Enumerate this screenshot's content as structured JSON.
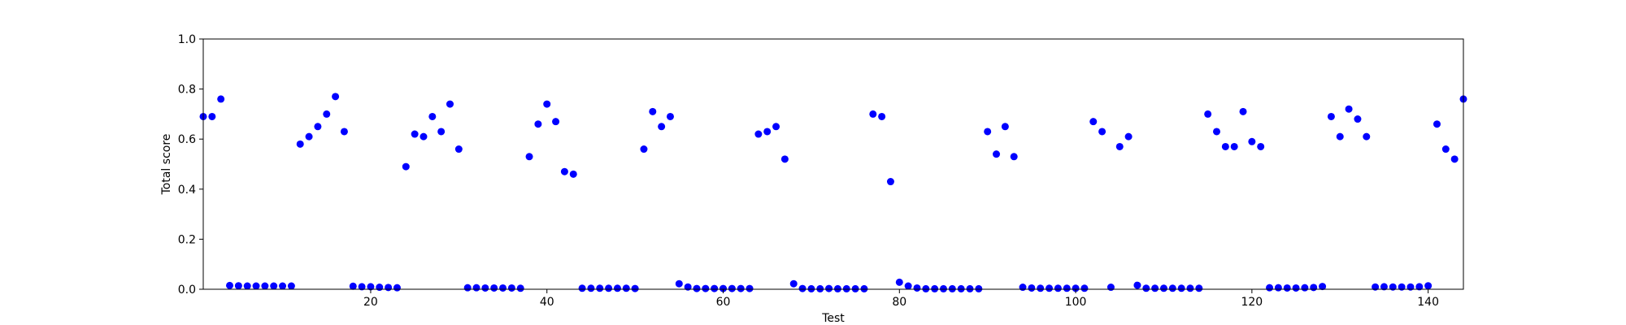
{
  "chart_data": {
    "type": "scatter",
    "title": "",
    "xlabel": "Test",
    "ylabel": "Total score",
    "xlim": [
      1,
      144
    ],
    "ylim": [
      0.0,
      1.0
    ],
    "xticks": [
      20,
      40,
      60,
      80,
      100,
      120,
      140
    ],
    "yticks": [
      0.0,
      0.2,
      0.4,
      0.6,
      0.8,
      1.0
    ],
    "xtick_labels": [
      "20",
      "40",
      "60",
      "80",
      "100",
      "120",
      "140"
    ],
    "ytick_labels": [
      "0.0",
      "0.2",
      "0.4",
      "0.6",
      "0.8",
      "1.0"
    ],
    "grid": false,
    "marker_color": "#0000ff",
    "series": [
      {
        "x": [
          1,
          2,
          3,
          4,
          5,
          6,
          7,
          8,
          9,
          10,
          11,
          12,
          13,
          14,
          15,
          16,
          17,
          18,
          19,
          20,
          21,
          22,
          23,
          24,
          25,
          26,
          27,
          28,
          29,
          30,
          31,
          32,
          33,
          34,
          35,
          36,
          37,
          38,
          39,
          40,
          41,
          42,
          43,
          44,
          45,
          46,
          47,
          48,
          49,
          50,
          51,
          52,
          53,
          54,
          55,
          56,
          57,
          58,
          59,
          60,
          61,
          62,
          63,
          64,
          65,
          66,
          67,
          68,
          69,
          70,
          71,
          72,
          73,
          74,
          75,
          76,
          77,
          78,
          79,
          80,
          81,
          82,
          83,
          84,
          85,
          86,
          87,
          88,
          89,
          90,
          91,
          92,
          93,
          94,
          95,
          96,
          97,
          98,
          99,
          100,
          101,
          102,
          103,
          104,
          105,
          106,
          107,
          108,
          109,
          110,
          111,
          112,
          113,
          114,
          115,
          116,
          117,
          118,
          119,
          120,
          121,
          122,
          123,
          124,
          125,
          126,
          127,
          128,
          129,
          130,
          131,
          132,
          133,
          134,
          135,
          136,
          137,
          138,
          139,
          140,
          141,
          142,
          143,
          144
        ],
        "y": [
          0.69,
          0.69,
          0.76,
          0.015,
          0.014,
          0.013,
          0.013,
          0.013,
          0.013,
          0.013,
          0.013,
          0.58,
          0.61,
          0.65,
          0.7,
          0.77,
          0.63,
          0.012,
          0.01,
          0.01,
          0.008,
          0.007,
          0.006,
          0.49,
          0.62,
          0.61,
          0.69,
          0.63,
          0.74,
          0.56,
          0.006,
          0.006,
          0.005,
          0.005,
          0.005,
          0.005,
          0.004,
          0.53,
          0.66,
          0.74,
          0.67,
          0.47,
          0.46,
          0.004,
          0.004,
          0.004,
          0.004,
          0.004,
          0.004,
          0.003,
          0.56,
          0.71,
          0.65,
          0.69,
          0.022,
          0.009,
          0.003,
          0.003,
          0.003,
          0.003,
          0.003,
          0.003,
          0.003,
          0.62,
          0.63,
          0.65,
          0.52,
          0.022,
          0.003,
          0.002,
          0.002,
          0.003,
          0.002,
          0.002,
          0.002,
          0.002,
          0.7,
          0.69,
          0.43,
          0.028,
          0.013,
          0.005,
          0.002,
          0.002,
          0.002,
          0.002,
          0.002,
          0.002,
          0.002,
          0.63,
          0.54,
          0.65,
          0.53,
          0.008,
          0.005,
          0.004,
          0.004,
          0.004,
          0.004,
          0.004,
          0.004,
          0.67,
          0.63,
          0.008,
          0.57,
          0.61,
          0.016,
          0.004,
          0.004,
          0.004,
          0.004,
          0.004,
          0.004,
          0.004,
          0.7,
          0.63,
          0.57,
          0.57,
          0.71,
          0.59,
          0.57,
          0.006,
          0.006,
          0.005,
          0.005,
          0.006,
          0.007,
          0.011,
          0.69,
          0.61,
          0.72,
          0.68,
          0.61,
          0.009,
          0.01,
          0.009,
          0.009,
          0.009,
          0.01,
          0.014,
          0.66,
          0.56,
          0.52,
          0.76
        ]
      }
    ]
  }
}
